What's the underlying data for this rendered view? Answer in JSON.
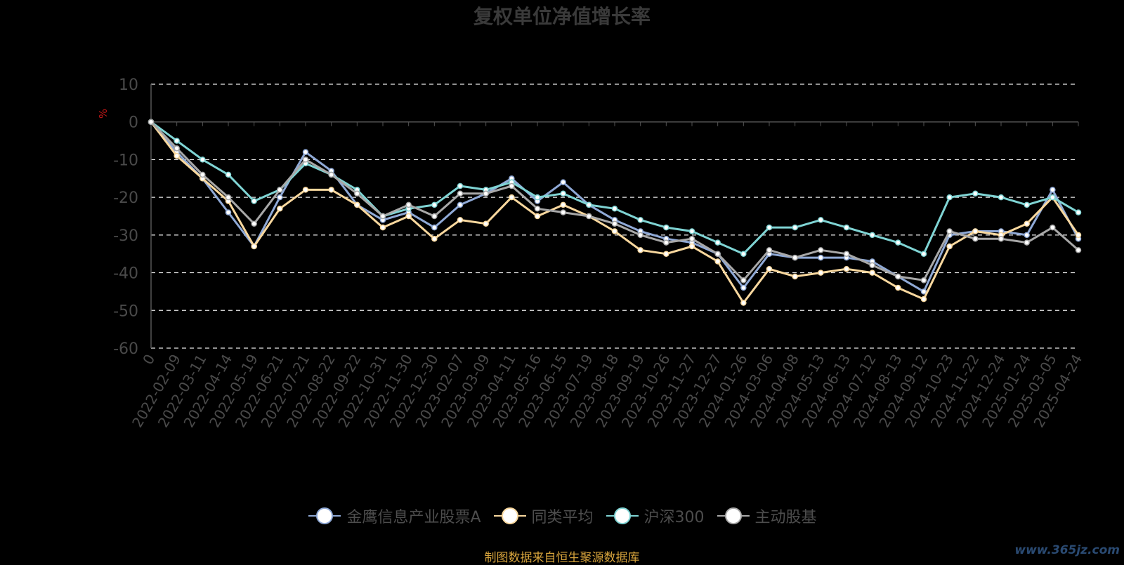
{
  "source_note": "制图数据来自恒生聚源数据库",
  "watermark": "www.365jz.com",
  "chart_data": {
    "type": "line",
    "title": "复权单位净值增长率",
    "ylabel": "%",
    "ylim": [
      -60,
      10
    ],
    "yticks": [
      10,
      0,
      -10,
      -20,
      -30,
      -40,
      -50,
      -60
    ],
    "grid": true,
    "legend_position": "bottom",
    "x_tick_labels": [
      "0",
      "2022-02-09",
      "2022-03-11",
      "2022-04-14",
      "2022-05-19",
      "2022-06-21",
      "2022-07-21",
      "2022-08-22",
      "2022-09-22",
      "2022-10-31",
      "2022-11-30",
      "2022-12-30",
      "2023-02-07",
      "2023-03-09",
      "2023-04-11",
      "2023-05-16",
      "2023-06-15",
      "2023-07-19",
      "2023-08-18",
      "2023-09-19",
      "2023-10-26",
      "2023-11-27",
      "2023-12-27",
      "2024-01-26",
      "2024-03-06",
      "2024-04-08",
      "2024-05-13",
      "2024-06-13",
      "2024-07-12",
      "2024-08-13",
      "2024-09-12",
      "2024-10-23",
      "2024-11-22",
      "2024-12-24",
      "2025-01-24",
      "2025-03-05",
      "2025-04-24"
    ],
    "series": [
      {
        "name": "金鹰信息产业股票A",
        "color": "#8fa9d6",
        "values": [
          0,
          -8,
          -15,
          -24,
          -33,
          -20,
          -8,
          -13,
          -22,
          -26,
          -24,
          -28,
          -22,
          -19,
          -15,
          -21,
          -16,
          -22,
          -26,
          -29,
          -31,
          -32,
          -35,
          -44,
          -35,
          -36,
          -36,
          -36,
          -37,
          -41,
          -45,
          -30,
          -29,
          -29,
          -30,
          -18,
          -31
        ]
      },
      {
        "name": "同类平均",
        "color": "#f9d89e",
        "values": [
          0,
          -9,
          -15,
          -21,
          -33,
          -23,
          -18,
          -18,
          -22,
          -28,
          -25,
          -31,
          -26,
          -27,
          -20,
          -25,
          -22,
          -25,
          -29,
          -34,
          -35,
          -33,
          -37,
          -48,
          -39,
          -41,
          -40,
          -39,
          -40,
          -44,
          -47,
          -33,
          -29,
          -30,
          -27,
          -20,
          -30
        ]
      },
      {
        "name": "沪深300",
        "color": "#7fd4d4",
        "values": [
          0,
          -5,
          -10,
          -14,
          -21,
          -18,
          -11,
          -14,
          -18,
          -25,
          -23,
          -22,
          -17,
          -18,
          -16,
          -20,
          -19,
          -22,
          -23,
          -26,
          -28,
          -29,
          -32,
          -35,
          -28,
          -28,
          -26,
          -28,
          -30,
          -32,
          -35,
          -20,
          -19,
          -20,
          -22,
          -20,
          -24
        ]
      },
      {
        "name": "主动股基",
        "color": "#a8a8a8",
        "values": [
          0,
          -7,
          -14,
          -20,
          -27,
          -18,
          -10,
          -14,
          -19,
          -25,
          -22,
          -25,
          -19,
          -19,
          -17,
          -23,
          -24,
          -25,
          -27,
          -30,
          -32,
          -31,
          -35,
          -42,
          -34,
          -36,
          -34,
          -35,
          -38,
          -41,
          -42,
          -29,
          -31,
          -31,
          -32,
          -28,
          -34
        ]
      }
    ]
  }
}
